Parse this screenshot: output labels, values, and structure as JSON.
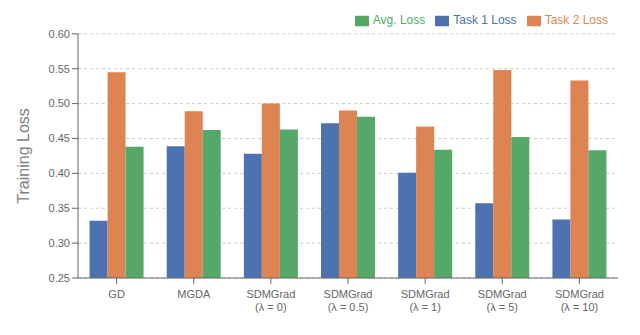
{
  "chart_data": {
    "type": "bar",
    "categories": [
      "GD",
      "MGDA",
      "SDMGrad\n(λ = 0)",
      "SDMGrad\n(λ = 0.5)",
      "SDMGrad\n(λ = 1)",
      "SDMGrad\n(λ = 5)",
      "SDMGrad\n(λ = 10)"
    ],
    "series": [
      {
        "name": "Task 1 Loss",
        "color": "#4c72b0",
        "values": [
          0.332,
          0.439,
          0.428,
          0.472,
          0.401,
          0.357,
          0.334
        ]
      },
      {
        "name": "Task 2 Loss",
        "color": "#dd8452",
        "values": [
          0.545,
          0.489,
          0.5,
          0.49,
          0.467,
          0.548,
          0.533
        ]
      },
      {
        "name": "Avg. Loss",
        "color": "#55a868",
        "values": [
          0.438,
          0.462,
          0.463,
          0.481,
          0.434,
          0.452,
          0.433
        ]
      }
    ],
    "y_label": "Training Loss",
    "ylim": [
      0.25,
      0.6
    ],
    "yticks": [
      0.25,
      {
        "value": 0.3,
        "label": "0.30"
      },
      0.35,
      {
        "value": 0.4,
        "label": "0.40"
      },
      0.45,
      {
        "value": 0.5,
        "label": "0.50"
      },
      0.55,
      {
        "value": 0.6,
        "label": "0.60"
      }
    ],
    "grid": true,
    "legend": "upper right"
  }
}
